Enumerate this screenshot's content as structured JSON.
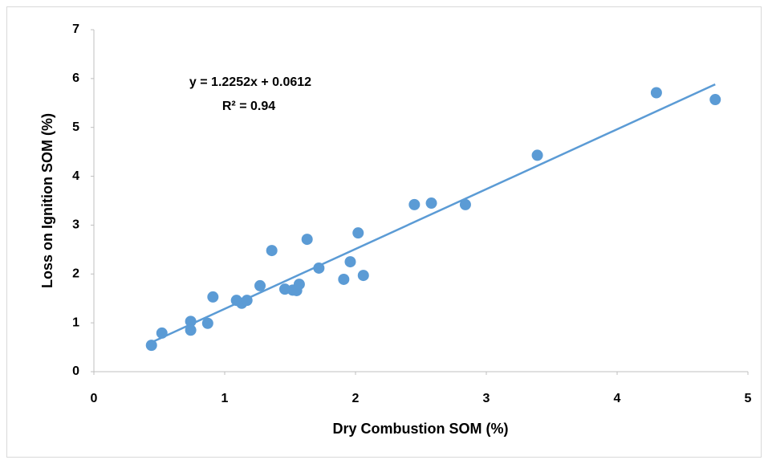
{
  "chart_data": {
    "type": "scatter",
    "x_label": "Dry Combustion SOM (%)",
    "y_label": "Loss on Ignition SOM (%)",
    "series": [
      {
        "color": "#5b9bd5",
        "x": [
          0.44,
          0.52,
          0.74,
          0.74,
          0.87,
          0.91,
          1.09,
          1.13,
          1.17,
          1.27,
          1.36,
          1.46,
          1.52,
          1.55,
          1.57,
          1.63,
          1.72,
          1.91,
          1.96,
          2.02,
          2.06,
          2.45,
          2.58,
          2.84,
          3.39,
          4.3,
          4.75
        ],
        "values": [
          0.54,
          0.79,
          1.03,
          0.85,
          0.99,
          1.53,
          1.46,
          1.4,
          1.46,
          1.76,
          2.48,
          1.69,
          1.67,
          1.66,
          1.79,
          2.71,
          2.12,
          1.89,
          2.25,
          2.84,
          1.97,
          3.42,
          3.45,
          3.42,
          4.43,
          5.71,
          5.57
        ]
      }
    ],
    "trendline": {
      "equation": "y = 1.2252x + 0.0612",
      "slope": 1.2252,
      "intercept": 0.0612,
      "r_squared": "R² = 0.94",
      "color": "#5b9bd5"
    },
    "xlim": [
      0,
      5
    ],
    "xticks": [
      0,
      1,
      2,
      3,
      4,
      5
    ],
    "ylim": [
      0,
      7
    ],
    "yticks": [
      0,
      1,
      2,
      3,
      4,
      5,
      6,
      7
    ]
  }
}
